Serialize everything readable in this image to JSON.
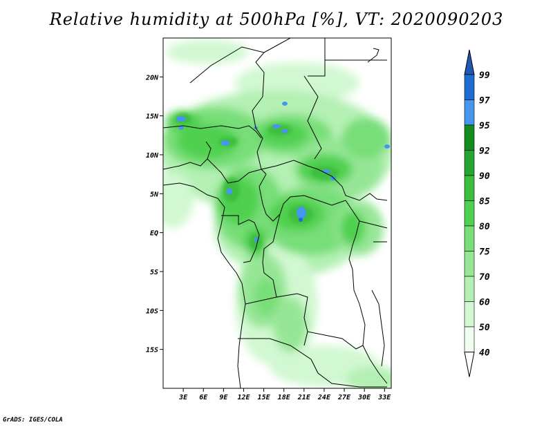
{
  "title": "Relative humidity at 500hPa [%], VT: 2020090203",
  "credit": "GrADS: IGES/COLA",
  "map": {
    "lon_range": [
      0,
      34
    ],
    "lat_range": [
      -20,
      25
    ],
    "lat_ticks": [
      {
        "value": 20,
        "label": "20N"
      },
      {
        "value": 15,
        "label": "15N"
      },
      {
        "value": 10,
        "label": "10N"
      },
      {
        "value": 5,
        "label": "5N"
      },
      {
        "value": 0,
        "label": "EQ"
      },
      {
        "value": -5,
        "label": "5S"
      },
      {
        "value": -10,
        "label": "10S"
      },
      {
        "value": -15,
        "label": "15S"
      }
    ],
    "lon_ticks": [
      {
        "value": 3,
        "label": "3E"
      },
      {
        "value": 6,
        "label": "6E"
      },
      {
        "value": 9,
        "label": "9E"
      },
      {
        "value": 12,
        "label": "12E"
      },
      {
        "value": 15,
        "label": "15E"
      },
      {
        "value": 18,
        "label": "18E"
      },
      {
        "value": 21,
        "label": "21E"
      },
      {
        "value": 24,
        "label": "24E"
      },
      {
        "value": 27,
        "label": "27E"
      },
      {
        "value": 30,
        "label": "30E"
      },
      {
        "value": 33,
        "label": "33E"
      }
    ]
  },
  "colorbar": {
    "levels": [
      "99",
      "97",
      "95",
      "92",
      "90",
      "85",
      "80",
      "75",
      "70",
      "60",
      "50",
      "40"
    ],
    "colors": [
      "#1e6ed2",
      "#4696ee",
      "#148c1e",
      "#28a432",
      "#3cbe3c",
      "#50d050",
      "#78de78",
      "#96e696",
      "#b4f0b4",
      "#d2f8d2",
      "#f0fff0"
    ],
    "top_triangle_color": "#1e5ab4",
    "bottom_triangle_color": "#ffffff"
  }
}
